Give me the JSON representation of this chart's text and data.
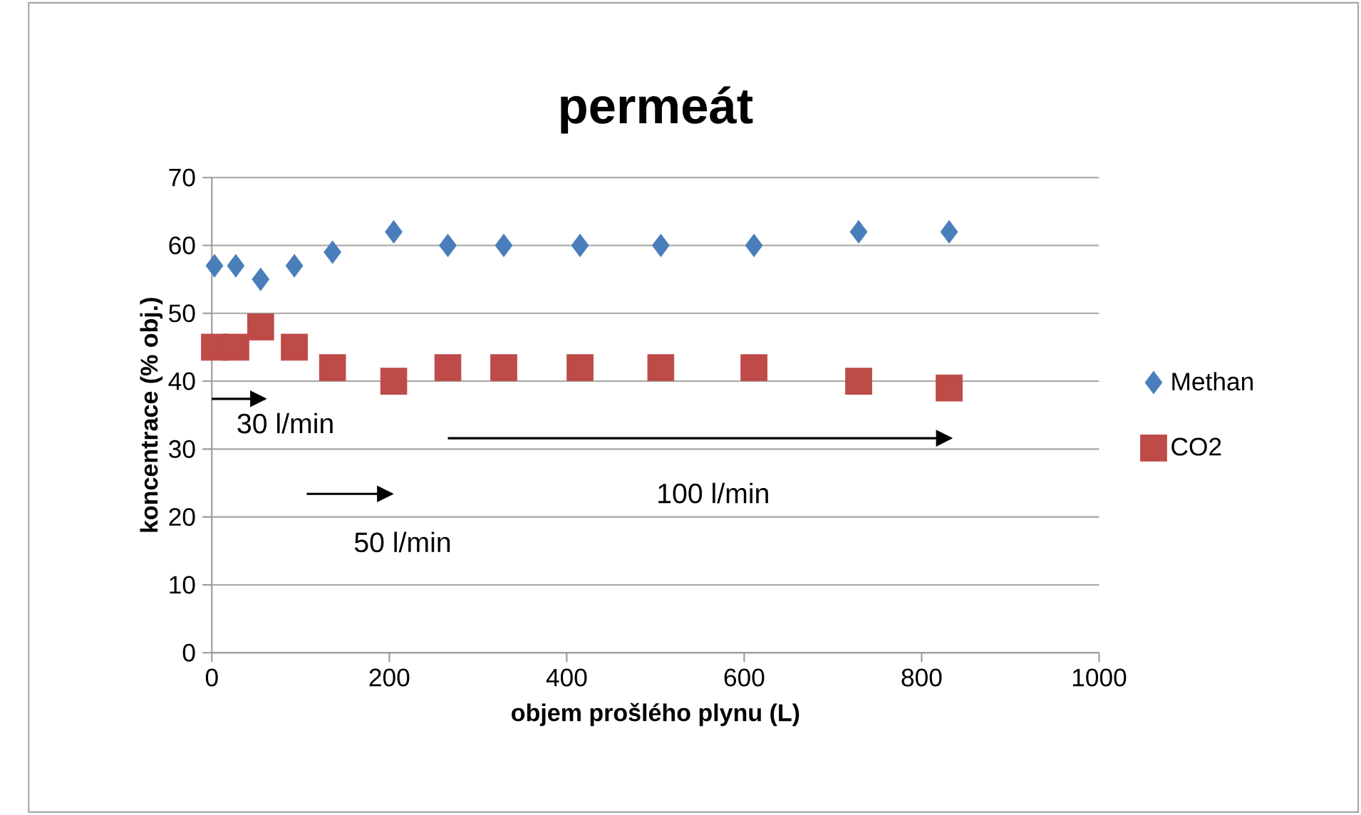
{
  "chart_data": {
    "type": "scatter",
    "title": "permeát",
    "xlabel": "objem prošlého plynu (L)",
    "ylabel": "koncentrace (% obj.)",
    "xlim": [
      0,
      1000
    ],
    "xticks": [
      0,
      200,
      400,
      600,
      800,
      1000
    ],
    "ylim": [
      0,
      70
    ],
    "yticks": [
      0,
      10,
      20,
      30,
      40,
      50,
      60,
      70
    ],
    "grid": "y",
    "legend": "right",
    "series": [
      {
        "name": "Methan",
        "color": "#4a7ebb",
        "marker": "diamond",
        "x": [
          3,
          27,
          55,
          93,
          136,
          205,
          266,
          329,
          415,
          506,
          611,
          729,
          831
        ],
        "values": [
          57,
          57,
          55,
          57,
          59,
          62,
          60,
          60,
          60,
          60,
          60,
          62,
          62
        ]
      },
      {
        "name": "CO2",
        "color": "#be4b48",
        "marker": "square",
        "x": [
          3,
          27,
          55,
          93,
          136,
          205,
          266,
          329,
          415,
          506,
          611,
          729,
          831
        ],
        "values": [
          45,
          45,
          48,
          45,
          42,
          40,
          42,
          42,
          42,
          42,
          42,
          40,
          39
        ]
      },
      {
        "type": "line",
        "color": "#000000",
        "marker": "none",
        "x": [
          0,
          60
        ],
        "values": [
          37.4,
          37.4
        ]
      },
      {
        "type": "line",
        "color": "#000000",
        "marker": "none",
        "x": [
          107,
          203
        ],
        "values": [
          23.4,
          23.4
        ]
      },
      {
        "type": "line",
        "color": "#000000",
        "marker": "none",
        "x": [
          266,
          833
        ],
        "values": [
          31.6,
          31.6
        ]
      }
    ],
    "annotations": [
      "30 l/min",
      "50 l/min",
      "100 l/min"
    ]
  }
}
